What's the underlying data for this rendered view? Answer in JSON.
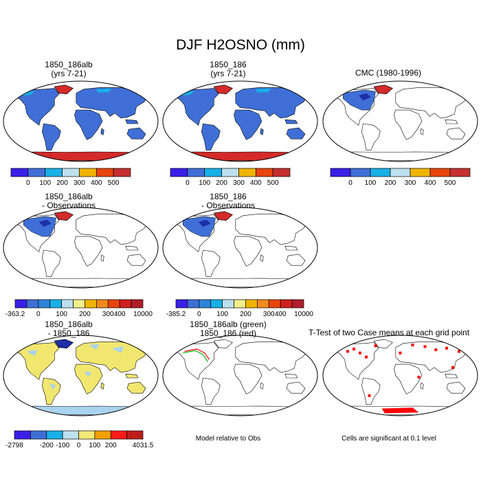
{
  "main_title": "DJF H2OSNO (mm)",
  "colors": {
    "scale7": [
      "#3a1fe6",
      "#3f6fd6",
      "#18b0e6",
      "#bde0ef",
      "#f0b400",
      "#e8440c",
      "#c43030"
    ],
    "scale11": [
      "#3a1fe6",
      "#3f6fd6",
      "#2c84d8",
      "#18b0e6",
      "#bde0ef",
      "#f2ee8c",
      "#f0b400",
      "#f08a1c",
      "#e8440c",
      "#d02020",
      "#b01e2a"
    ],
    "scale8": [
      "#3a1fe6",
      "#3f6fd6",
      "#18b0e6",
      "#bde0ef",
      "#f4e877",
      "#f0a000",
      "#ff1a1a",
      "#c01c1c"
    ],
    "land_blue": "#3f6fd6",
    "land_red": "#d42a2a",
    "land_yellow": "#f2e76e",
    "land_lightblue": "#a9d3ee",
    "sig_red": "#ff0000",
    "green": "#00b000"
  },
  "chart_data": [
    {
      "type": "heatmap",
      "title": [
        "1850_186alb",
        "(yrs 7-21)"
      ],
      "fill": "model",
      "colorbar": {
        "colors": "scale7",
        "tick_labels": [
          "0",
          "100",
          "200",
          "300",
          "400",
          "500"
        ]
      }
    },
    {
      "type": "heatmap",
      "title": [
        "1850_186",
        "(yrs 7-21)"
      ],
      "fill": "model",
      "colorbar": {
        "colors": "scale7",
        "tick_labels": [
          "0",
          "100",
          "200",
          "300",
          "400",
          "500"
        ]
      }
    },
    {
      "type": "heatmap",
      "title": [
        "CMC (1980-1996)"
      ],
      "fill": "obs",
      "colorbar": {
        "colors": "scale7",
        "tick_labels": [
          "0",
          "100",
          "200",
          "300",
          "400",
          "500"
        ]
      }
    },
    {
      "type": "heatmap",
      "title": [
        "1850_186alb",
        "- Observations"
      ],
      "fill": "obs",
      "colorbar": {
        "colors": "scale11",
        "tick_labels": [
          "-363.2",
          "0",
          "100",
          "200",
          "300",
          "400",
          "10000"
        ]
      }
    },
    {
      "type": "heatmap",
      "title": [
        "1850_186",
        "- Observations"
      ],
      "fill": "obs",
      "colorbar": {
        "colors": "scale11",
        "tick_labels": [
          "-385.2",
          "0",
          "100",
          "200",
          "300",
          "400",
          "10000"
        ]
      }
    },
    {
      "type": "heatmap",
      "title": [
        "1850_186alb",
        "- 1850_186"
      ],
      "fill": "diff",
      "colorbar": {
        "colors": "scale8",
        "tick_labels": [
          "-2798",
          "-200",
          "-100",
          "0",
          "100",
          "200",
          "4031.5"
        ]
      }
    },
    {
      "type": "heatmap",
      "title": [
        "1850_186alb (green)",
        "1850_186 (red)"
      ],
      "fill": "contour",
      "note": "Model relative to Obs"
    },
    {
      "type": "heatmap",
      "title": [
        "T-Test of two Case means at each grid point"
      ],
      "fill": "ttest",
      "note": "Cells are significant at 0.1 level"
    }
  ]
}
